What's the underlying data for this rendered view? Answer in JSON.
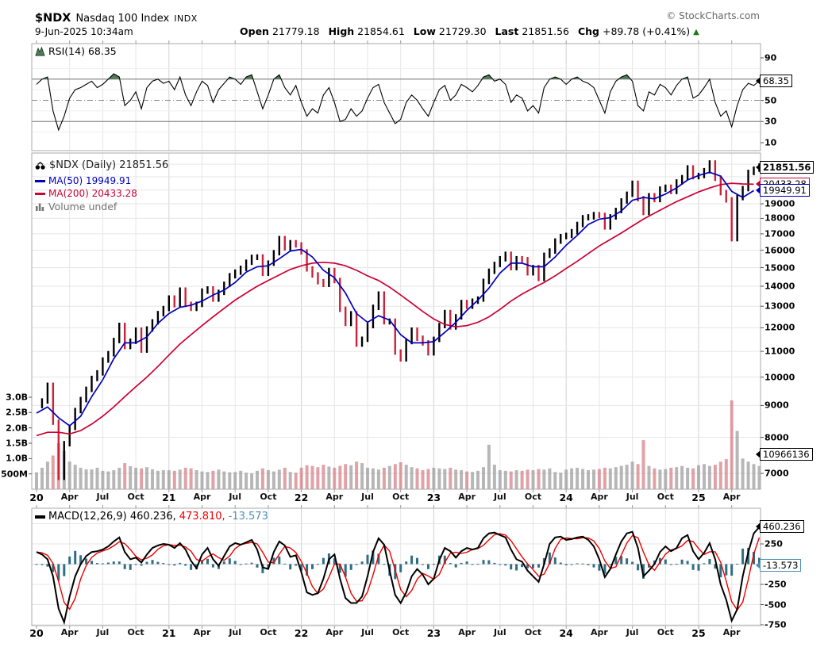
{
  "header": {
    "symbol": "$NDX",
    "name": "Nasdaq 100 Index",
    "exchange": "INDX",
    "timestamp": "9-Jun-2025 10:34am",
    "copyright": "© StockCharts.com",
    "quote": {
      "open_label": "Open",
      "open": "21779.18",
      "high_label": "High",
      "high": "21854.61",
      "low_label": "Low",
      "low": "21729.30",
      "last_label": "Last",
      "last": "21851.56",
      "chg_label": "Chg",
      "chg": "+89.78 (+0.41%)",
      "arrow": "▲",
      "direction": "up"
    }
  },
  "rsi_panel": {
    "legend": "RSI(14) 68.35"
  },
  "main_panel": {
    "series_label": "$NDX (Daily) 21851.56",
    "ma50_label": "MA(50) 19949.91",
    "ma200_label": "MA(200) 20433.28",
    "volume_label": "Volume undef"
  },
  "macd_panel": {
    "name": "MACD(12,26,9)",
    "value_macd": "460.236,",
    "value_signal": "473.810,",
    "value_hist": "-13.573"
  },
  "colors": {
    "ma50": "#0000bb",
    "ma200": "#cc0033",
    "candle_up": "#000000",
    "candle_down": "#cc2239",
    "macd_line": "#000000",
    "macd_signal": "#ee0000",
    "macd_hist": "#2f6d83",
    "macd_hist_text": "#4a8fb5",
    "rsi_line": "#000000",
    "rsi_fill": "#4e7d57",
    "vol_up": "rgba(145,145,145,0.65)",
    "vol_down": "rgba(200,85,95,0.55)",
    "grid": "#e6e6e6",
    "grid_year": "#d2d2d2",
    "frame": "#aaaaaa",
    "guide": "#8a8a8a",
    "green": "#1a7a1a"
  },
  "callouts": [
    {
      "text": "68.35",
      "y": 102,
      "border": "#000000",
      "bold": false
    },
    {
      "text": "20433.28",
      "y": 232,
      "border": "#cc0033",
      "bold": false
    },
    {
      "text": "19949.91",
      "y": 240,
      "border": "#0000bb",
      "bold": false
    },
    {
      "text": "21851.56",
      "y": 211,
      "border": "#000000",
      "bold": true
    },
    {
      "text": "10966136",
      "y": 573,
      "border": "#000000",
      "bold": false
    },
    {
      "text": "460.236",
      "y": 664,
      "border": "#000000",
      "bold": false
    },
    {
      "text": "-13.573",
      "y": 713,
      "border": "#4a8fb5",
      "bold": false
    }
  ],
  "axes": {
    "x_ticks": [
      [
        0,
        "20"
      ],
      [
        3,
        "Apr"
      ],
      [
        6,
        "Jul"
      ],
      [
        9,
        "Oct"
      ],
      [
        12,
        "21"
      ],
      [
        15,
        "Apr"
      ],
      [
        18,
        "Jul"
      ],
      [
        21,
        "Oct"
      ],
      [
        24,
        "22"
      ],
      [
        27,
        "Apr"
      ],
      [
        30,
        "Jul"
      ],
      [
        33,
        "Oct"
      ],
      [
        36,
        "23"
      ],
      [
        39,
        "Apr"
      ],
      [
        42,
        "Jul"
      ],
      [
        45,
        "Oct"
      ],
      [
        48,
        "24"
      ],
      [
        51,
        "Apr"
      ],
      [
        54,
        "Jul"
      ],
      [
        57,
        "Oct"
      ],
      [
        60,
        "25"
      ],
      [
        63,
        "Apr"
      ]
    ],
    "rsi_ticks": [
      {
        "v": 90,
        "label": "90"
      },
      {
        "v": 50,
        "label": "50"
      },
      {
        "v": 30,
        "label": "30"
      },
      {
        "v": 10,
        "label": "10"
      }
    ],
    "price_ticks": [
      {
        "v": 19000,
        "label": "19000"
      },
      {
        "v": 18000,
        "label": "18000"
      },
      {
        "v": 17000,
        "label": "17000"
      },
      {
        "v": 16000,
        "label": "16000"
      },
      {
        "v": 15000,
        "label": "15000"
      },
      {
        "v": 14000,
        "label": "14000"
      },
      {
        "v": 13000,
        "label": "13000"
      },
      {
        "v": 12000,
        "label": "12000"
      },
      {
        "v": 11000,
        "label": "11000"
      },
      {
        "v": 10000,
        "label": "10000"
      },
      {
        "v": 9000,
        "label": "9000"
      },
      {
        "v": 8000,
        "label": "8000"
      },
      {
        "v": 7000,
        "label": "7000"
      }
    ],
    "volume_ticks": [
      {
        "v": 3000,
        "label": "3.0B"
      },
      {
        "v": 2500,
        "label": "2.5B"
      },
      {
        "v": 2000,
        "label": "2.0B"
      },
      {
        "v": 1500,
        "label": "1.5B"
      },
      {
        "v": 1000,
        "label": "1.0B"
      },
      {
        "v": 500,
        "label": "500M"
      }
    ],
    "macd_ticks": [
      {
        "v": 250,
        "label": "250"
      },
      {
        "v": -250,
        "label": "-250"
      },
      {
        "v": -500,
        "label": "-500"
      },
      {
        "v": -750,
        "label": "-750"
      }
    ]
  },
  "chart_data": [
    {
      "id": "rsi",
      "type": "line",
      "title": "RSI(14)",
      "last": 68.35,
      "ylim": [
        10,
        90
      ],
      "overbought": 70,
      "oversold": 30,
      "midline": 50,
      "x_range": "Jan-2020 to Jun-2025 (biweekly samples)",
      "values": [
        65,
        70,
        72,
        40,
        22,
        35,
        52,
        60,
        62,
        65,
        68,
        62,
        65,
        70,
        75,
        72,
        45,
        50,
        58,
        42,
        62,
        68,
        70,
        66,
        68,
        60,
        72,
        55,
        45,
        58,
        68,
        64,
        48,
        60,
        66,
        72,
        70,
        65,
        72,
        74,
        58,
        42,
        55,
        70,
        74,
        62,
        55,
        64,
        48,
        35,
        42,
        38,
        55,
        62,
        48,
        30,
        32,
        42,
        35,
        40,
        52,
        62,
        65,
        48,
        38,
        28,
        32,
        48,
        55,
        50,
        42,
        35,
        48,
        60,
        64,
        50,
        55,
        65,
        62,
        58,
        64,
        72,
        74,
        68,
        70,
        65,
        48,
        55,
        52,
        40,
        45,
        38,
        62,
        70,
        72,
        70,
        65,
        70,
        72,
        68,
        66,
        62,
        50,
        38,
        58,
        68,
        72,
        74,
        68,
        45,
        40,
        58,
        55,
        65,
        62,
        55,
        64,
        70,
        72,
        52,
        55,
        62,
        70,
        48,
        35,
        40,
        25,
        45,
        60,
        66,
        64,
        68.35
      ]
    },
    {
      "id": "price",
      "type": "candlestick",
      "title": "$NDX Daily close",
      "last": 21851.56,
      "ylim": [
        6800,
        23000
      ],
      "y_scale": "log",
      "x_range": "Jan-2020 to Jun-2025 (biweekly samples)",
      "values": [
        9000,
        9151,
        9700,
        8461,
        6900,
        7813,
        8300,
        8834,
        9200,
        9556,
        9950,
        10157,
        10650,
        10906,
        11450,
        12110,
        11200,
        11418,
        11900,
        11052,
        11950,
        12268,
        12650,
        12888,
        13400,
        13070,
        13800,
        13091,
        12900,
        13091,
        13750,
        13860,
        13350,
        13686,
        14100,
        14555,
        14750,
        14960,
        15300,
        15582,
        15600,
        14689,
        15250,
        15850,
        16700,
        16135,
        16450,
        16320,
        15900,
        14930,
        14600,
        14238,
        14100,
        14838,
        14300,
        12855,
        12200,
        12642,
        11300,
        11504,
        12100,
        12948,
        13600,
        12272,
        12300,
        10971,
        10700,
        11405,
        11900,
        11546,
        11350,
        10940,
        11500,
        12102,
        12700,
        12042,
        12500,
        13181,
        13000,
        13245,
        13350,
        14254,
        14800,
        15179,
        15500,
        15757,
        15000,
        15501,
        15450,
        14715,
        15000,
        14410,
        15700,
        15948,
        16550,
        16826,
        16900,
        17137,
        17600,
        18044,
        18100,
        18254,
        18200,
        17441,
        18100,
        18537,
        19200,
        19683,
        20500,
        19362,
        18400,
        19575,
        19300,
        20061,
        20200,
        19890,
        20600,
        20930,
        21700,
        21012,
        21100,
        21478,
        22100,
        20884,
        19800,
        19278,
        16700,
        19445,
        20100,
        21341,
        21600,
        21851
      ],
      "ma50": {
        "period": 50,
        "last": 19949.91,
        "values": [
          8750,
          8950,
          8600,
          8350,
          8650,
          9300,
          9900,
          10700,
          11350,
          11350,
          11600,
          12200,
          12650,
          12950,
          13050,
          13250,
          13550,
          13800,
          14200,
          14750,
          15050,
          15100,
          15500,
          15950,
          16050,
          15600,
          14850,
          14450,
          13650,
          12650,
          12250,
          12550,
          12350,
          11700,
          11350,
          11350,
          11400,
          11800,
          12250,
          12800,
          13300,
          13900,
          14700,
          15250,
          15250,
          15050,
          15050,
          15600,
          16300,
          16900,
          17600,
          17950,
          18050,
          18500,
          19250,
          19450,
          19350,
          19700,
          20150,
          20750,
          21100,
          21350,
          21050,
          19900,
          19450,
          19950
        ]
      },
      "ma200": {
        "period": 200,
        "last": 20433.28,
        "values": [
          8050,
          8150,
          8150,
          8100,
          8200,
          8400,
          8650,
          8950,
          9300,
          9650,
          10000,
          10400,
          10850,
          11300,
          11700,
          12100,
          12500,
          12900,
          13300,
          13650,
          14000,
          14300,
          14600,
          14900,
          15100,
          15250,
          15300,
          15250,
          15100,
          14850,
          14550,
          14300,
          13950,
          13550,
          13150,
          12750,
          12400,
          12150,
          12050,
          12100,
          12250,
          12500,
          12850,
          13250,
          13600,
          13900,
          14200,
          14550,
          14950,
          15350,
          15800,
          16250,
          16650,
          17050,
          17500,
          17950,
          18350,
          18750,
          19150,
          19500,
          19850,
          20150,
          20400,
          20500,
          20450,
          20433
        ]
      }
    },
    {
      "id": "volume",
      "type": "bar",
      "unit": "millions_of_shares",
      "last_label": "10966136",
      "ylim": [
        0,
        3000
      ],
      "values": [
        550,
        700,
        900,
        1100,
        1500,
        1250,
        900,
        800,
        700,
        650,
        650,
        700,
        600,
        580,
        620,
        700,
        850,
        750,
        700,
        680,
        720,
        650,
        600,
        620,
        620,
        600,
        640,
        700,
        680,
        620,
        580,
        560,
        600,
        640,
        580,
        550,
        560,
        600,
        540,
        520,
        600,
        680,
        620,
        580,
        640,
        700,
        560,
        540,
        700,
        780,
        760,
        720,
        800,
        740,
        700,
        760,
        820,
        780,
        900,
        850,
        700,
        680,
        640,
        700,
        760,
        820,
        880,
        800,
        720,
        680,
        620,
        660,
        700,
        680,
        660,
        700,
        640,
        620,
        580,
        560,
        600,
        720,
        1450,
        800,
        620,
        600,
        580,
        620,
        600,
        640,
        620,
        660,
        640,
        680,
        560,
        540,
        640,
        680,
        700,
        660,
        620,
        640,
        660,
        700,
        680,
        720,
        760,
        800,
        900,
        820,
        1600,
        760,
        680,
        640,
        660,
        700,
        720,
        760,
        700,
        680,
        780,
        820,
        760,
        800,
        900,
        980,
        2900,
        1900,
        1000,
        900,
        820,
        760
      ]
    },
    {
      "id": "macd",
      "type": "line+histogram",
      "params": "12,26,9",
      "macd_last": 460.236,
      "signal_last": 473.81,
      "hist_last": -13.573,
      "ylim": [
        -850,
        690
      ],
      "values": [
        150,
        120,
        60,
        -150,
        -550,
        -720,
        -400,
        -150,
        0,
        100,
        150,
        160,
        180,
        220,
        280,
        330,
        150,
        60,
        80,
        20,
        120,
        200,
        230,
        250,
        240,
        200,
        260,
        180,
        40,
        -50,
        120,
        200,
        60,
        -20,
        100,
        220,
        260,
        240,
        270,
        300,
        180,
        -40,
        -60,
        150,
        280,
        230,
        90,
        110,
        -100,
        -350,
        -380,
        -360,
        -180,
        60,
        120,
        -180,
        -420,
        -480,
        -480,
        -400,
        -150,
        150,
        320,
        240,
        -80,
        -380,
        -480,
        -350,
        -150,
        -60,
        -130,
        -250,
        -180,
        50,
        200,
        160,
        80,
        160,
        200,
        180,
        200,
        320,
        380,
        390,
        360,
        330,
        180,
        60,
        30,
        -80,
        -150,
        -220,
        0,
        250,
        330,
        340,
        300,
        310,
        330,
        340,
        300,
        220,
        60,
        -160,
        -60,
        120,
        280,
        380,
        400,
        200,
        -150,
        -80,
        0,
        150,
        220,
        160,
        200,
        320,
        360,
        160,
        60,
        140,
        260,
        60,
        -250,
        -440,
        -700,
        -560,
        -150,
        150,
        380,
        460.236
      ]
    }
  ]
}
